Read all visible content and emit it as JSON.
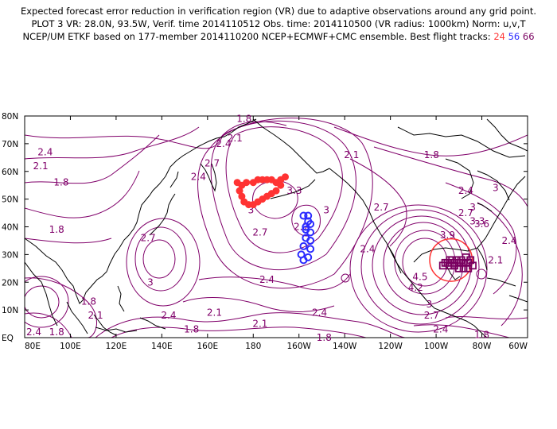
{
  "header": {
    "line1": "Expected forecast error reduction in verification region (VR) due to adaptive observations around any grid point.",
    "line2": "PLOT 3 VR: 28.0N, 93.5W, Verif. time 2014110512 Obs. time: 2014110500 (VR radius: 1000km) Norm: u,v,T",
    "line3_prefix": "NCEP/UM ETKF based on 177-member 2014110200 NCEP+ECMWF+CMC ensemble. Best flight tracks:",
    "track_a": "24",
    "track_b": "56",
    "track_c": "66"
  },
  "colors": {
    "contour": "#80006a",
    "coast": "#000000",
    "track_24": "#ff3333",
    "track_56": "#2b2bff",
    "track_66": "#7a0060",
    "vr_circle": "#ff3333"
  },
  "axes": {
    "lat_labels": [
      "80N",
      "70N",
      "60N",
      "50N",
      "40N",
      "30N",
      "20N",
      "10N",
      "EQ"
    ],
    "lon_labels": [
      "80E",
      "100E",
      "120E",
      "140E",
      "160E",
      "180",
      "160W",
      "140W",
      "120W",
      "100W",
      "80W",
      "60W"
    ]
  },
  "contour_labels": [
    {
      "text": "1.8",
      "lon": 176,
      "lat": 79
    },
    {
      "text": "2.1",
      "lon": 172,
      "lat": 72
    },
    {
      "text": "2.4",
      "lon": 167,
      "lat": 70
    },
    {
      "text": "2.7",
      "lon": 162,
      "lat": 63
    },
    {
      "text": "2.4",
      "lon": 156,
      "lat": 58
    },
    {
      "text": "2.4",
      "lon": 89,
      "lat": 67
    },
    {
      "text": "2.1",
      "lon": 87,
      "lat": 62
    },
    {
      "text": "1.8",
      "lon": 96,
      "lat": 56
    },
    {
      "text": "1.8",
      "lon": 94,
      "lat": 39
    },
    {
      "text": "2.7",
      "lon": 134,
      "lat": 36
    },
    {
      "text": "3",
      "lon": 135,
      "lat": 20
    },
    {
      "text": "2.4",
      "lon": 186,
      "lat": 21
    },
    {
      "text": "2.7",
      "lon": 183,
      "lat": 38
    },
    {
      "text": "3",
      "lon": 179,
      "lat": 46
    },
    {
      "text": "3.3",
      "lon": 198,
      "lat": 53
    },
    {
      "text": "2.7",
      "lon": 201,
      "lat": 40
    },
    {
      "text": "3",
      "lon": 212,
      "lat": 46
    },
    {
      "text": "2.7",
      "lon": 236,
      "lat": 47
    },
    {
      "text": "2.4",
      "lon": 230,
      "lat": 32
    },
    {
      "text": "2.1",
      "lon": 223,
      "lat": 66
    },
    {
      "text": "1.8",
      "lon": 258,
      "lat": 66
    },
    {
      "text": "2.4",
      "lon": 273,
      "lat": 53
    },
    {
      "text": "2.7",
      "lon": 273,
      "lat": 45
    },
    {
      "text": "3",
      "lon": 276,
      "lat": 47
    },
    {
      "text": "3",
      "lon": 286,
      "lat": 54
    },
    {
      "text": "3.3",
      "lon": 278,
      "lat": 42
    },
    {
      "text": "3.6",
      "lon": 280,
      "lat": 41
    },
    {
      "text": "3.9",
      "lon": 265,
      "lat": 37
    },
    {
      "text": "4.5",
      "lon": 253,
      "lat": 22
    },
    {
      "text": "4.2",
      "lon": 251,
      "lat": 18
    },
    {
      "text": "3",
      "lon": 257,
      "lat": 12
    },
    {
      "text": "2.7",
      "lon": 258,
      "lat": 8
    },
    {
      "text": "2.4",
      "lon": 262,
      "lat": 3
    },
    {
      "text": "2.1",
      "lon": 286,
      "lat": 28
    },
    {
      "text": "2.4",
      "lon": 292,
      "lat": 35
    },
    {
      "text": "1.8",
      "lon": 280,
      "lat": 1
    },
    {
      "text": "2.1",
      "lon": 111,
      "lat": 8
    },
    {
      "text": "1.8",
      "lon": 108,
      "lat": 13
    },
    {
      "text": "2.4",
      "lon": 143,
      "lat": 8
    },
    {
      "text": "2.1",
      "lon": 163,
      "lat": 9
    },
    {
      "text": "1.8",
      "lon": 153,
      "lat": 3
    },
    {
      "text": "2.1",
      "lon": 183,
      "lat": 5
    },
    {
      "text": "1.8",
      "lon": 211,
      "lat": 0
    },
    {
      "text": "2.4",
      "lon": 84,
      "lat": 2
    },
    {
      "text": "1.8",
      "lon": 94,
      "lat": 2
    },
    {
      "text": "2.4",
      "lon": 209,
      "lat": 9
    }
  ],
  "track_24_points": [
    [
      173,
      56
    ],
    [
      175,
      55
    ],
    [
      177,
      56
    ],
    [
      180,
      56
    ],
    [
      182,
      57
    ],
    [
      184,
      57
    ],
    [
      186,
      57
    ],
    [
      188,
      57
    ],
    [
      190,
      56
    ],
    [
      192,
      57
    ],
    [
      194,
      58
    ],
    [
      174,
      53
    ],
    [
      175,
      51
    ],
    [
      176,
      49
    ],
    [
      178,
      48
    ],
    [
      180,
      48
    ],
    [
      182,
      49
    ],
    [
      184,
      50
    ],
    [
      186,
      51
    ],
    [
      188,
      52
    ],
    [
      190,
      53
    ],
    [
      192,
      55
    ]
  ],
  "track_56_points": [
    [
      202,
      44
    ],
    [
      204,
      44
    ],
    [
      205,
      41
    ],
    [
      205,
      38
    ],
    [
      205,
      35
    ],
    [
      205,
      32
    ],
    [
      204,
      29
    ],
    [
      202,
      28
    ],
    [
      201,
      30
    ],
    [
      202,
      33
    ],
    [
      203,
      36
    ],
    [
      203,
      39
    ],
    [
      204,
      42
    ],
    [
      203,
      40
    ]
  ],
  "track_66_points": [
    [
      263,
      26
    ],
    [
      265,
      27
    ],
    [
      267,
      28
    ],
    [
      269,
      28
    ],
    [
      271,
      28
    ],
    [
      273,
      29
    ],
    [
      275,
      28
    ],
    [
      276,
      26
    ],
    [
      274,
      25
    ],
    [
      272,
      25
    ],
    [
      270,
      25
    ],
    [
      268,
      26
    ],
    [
      266,
      26
    ],
    [
      264,
      27
    ],
    [
      266,
      28
    ],
    [
      268,
      27
    ],
    [
      270,
      27
    ],
    [
      272,
      27
    ],
    [
      274,
      27
    ]
  ],
  "vr_circle": {
    "lon": 266.5,
    "lat": 28,
    "radius_deg": 9.3
  }
}
